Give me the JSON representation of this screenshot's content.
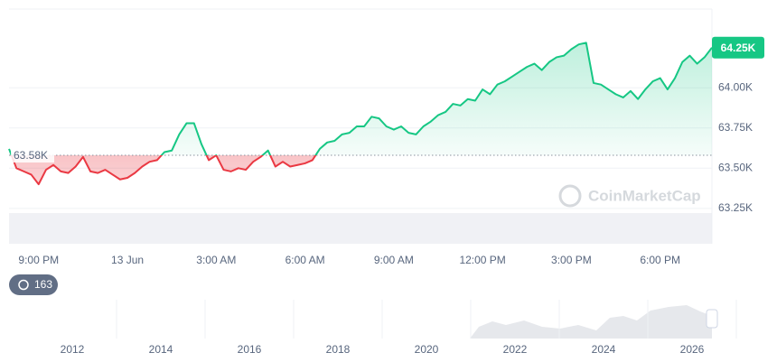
{
  "chart_data": {
    "type": "line",
    "categories": [
      null,
      null,
      null,
      null,
      "9:00 PM",
      null,
      null,
      null,
      null,
      null,
      null,
      null,
      null,
      null,
      null,
      null,
      "13 Jun",
      null,
      null,
      null,
      null,
      null,
      null,
      null,
      null,
      null,
      null,
      null,
      "3:00 AM",
      null,
      null,
      null,
      null,
      null,
      null,
      null,
      null,
      null,
      null,
      null,
      "6:00 AM",
      null,
      null,
      null,
      null,
      null,
      null,
      null,
      null,
      null,
      null,
      null,
      "9:00 AM",
      null,
      null,
      null,
      null,
      null,
      null,
      null,
      null,
      null,
      null,
      null,
      "12:00 PM",
      null,
      null,
      null,
      null,
      null,
      null,
      null,
      null,
      null,
      null,
      null,
      "3:00 PM",
      null,
      null,
      null,
      null,
      null,
      null,
      null,
      null,
      null,
      null,
      null,
      "6:00 PM",
      null,
      null,
      null,
      null,
      null,
      null,
      null
    ],
    "values": [
      63.62,
      63.5,
      63.48,
      63.46,
      63.4,
      63.49,
      63.52,
      63.48,
      63.47,
      63.51,
      63.57,
      63.48,
      63.47,
      63.49,
      63.46,
      63.43,
      63.44,
      63.47,
      63.51,
      63.54,
      63.55,
      63.6,
      63.61,
      63.71,
      63.78,
      63.78,
      63.65,
      63.55,
      63.58,
      63.49,
      63.48,
      63.5,
      63.49,
      63.54,
      63.57,
      63.61,
      63.51,
      63.54,
      63.51,
      63.52,
      63.53,
      63.55,
      63.62,
      63.66,
      63.67,
      63.71,
      63.72,
      63.76,
      63.76,
      63.82,
      63.81,
      63.76,
      63.74,
      63.76,
      63.72,
      63.71,
      63.76,
      63.79,
      63.83,
      63.85,
      63.9,
      63.89,
      63.93,
      63.92,
      63.99,
      63.96,
      64.02,
      64.04,
      64.07,
      64.1,
      64.13,
      64.15,
      64.11,
      64.16,
      64.19,
      64.2,
      64.24,
      64.27,
      64.28,
      64.03,
      64.02,
      63.99,
      63.96,
      63.94,
      63.98,
      63.93,
      63.99,
      64.04,
      64.06,
      63.99,
      64.06,
      64.16,
      64.2,
      64.15,
      64.19,
      64.25
    ],
    "up_color": "#16c784",
    "down_color": "#ea3943",
    "baseline": {
      "value": 63.58,
      "label": "63.58K"
    },
    "current_label": "64.25K",
    "ylim": [
      63.03,
      64.49
    ],
    "yticks": [
      {
        "value": 63.25,
        "label": "63.25K"
      },
      {
        "value": 63.5,
        "label": "63.50K"
      },
      {
        "value": 63.75,
        "label": "63.75K"
      },
      {
        "value": 64,
        "label": "64.00K"
      }
    ],
    "grid": true,
    "watermark": "CoinMarketCap",
    "badge": "163",
    "navigator_years": [
      "2012",
      "2014",
      "2016",
      "2018",
      "2020",
      "2022",
      "2024",
      "2026"
    ]
  }
}
